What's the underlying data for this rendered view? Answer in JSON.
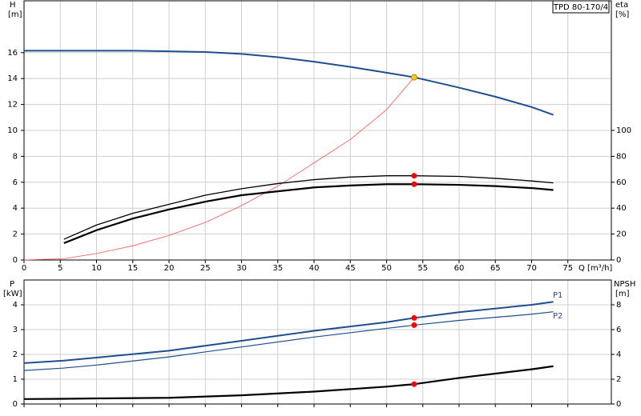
{
  "chart_data": [
    {
      "type": "line",
      "title": "TPD 80-170/4",
      "ylabel": "H",
      "yunit": "[m]",
      "y2label": "eta",
      "y2unit": "[%]",
      "xlabel": "Q [m³/h]",
      "x": [
        0,
        5.5,
        10,
        15,
        20,
        25,
        30,
        35,
        40,
        45,
        50,
        53.8,
        60,
        65,
        70,
        73
      ],
      "xlim": [
        0,
        81
      ],
      "xticks": [
        0,
        5,
        10,
        15,
        20,
        25,
        30,
        35,
        40,
        45,
        50,
        55,
        60,
        65,
        70,
        75
      ],
      "ylim": [
        0,
        20
      ],
      "yticks": [
        0,
        2,
        4,
        6,
        8,
        10,
        12,
        14,
        16
      ],
      "y2lim": [
        0,
        200
      ],
      "y2ticks": [
        0,
        20,
        40,
        60,
        80,
        100
      ],
      "grid": true,
      "series": [
        {
          "color": "#1f4f8f",
          "width": 2,
          "values": [
            16.15,
            16.15,
            16.15,
            16.15,
            16.1,
            16.05,
            15.9,
            15.65,
            15.3,
            14.9,
            14.45,
            14.1,
            13.3,
            12.6,
            11.8,
            11.2
          ]
        },
        {
          "color": "#ff5050",
          "width": 0.8,
          "values": [
            0,
            0.1,
            0.5,
            1.1,
            1.9,
            2.9,
            4.2,
            5.7,
            7.5,
            9.3,
            11.6,
            14.1,
            null,
            null,
            null,
            null
          ]
        },
        {
          "color": "#000000",
          "width": 1.3,
          "axis": "y2",
          "values": [
            null,
            16,
            27,
            36,
            43,
            50,
            55,
            59,
            62,
            64,
            65,
            65,
            64.5,
            63,
            61,
            59.5
          ]
        },
        {
          "color": "#000000",
          "width": 2.2,
          "axis": "y2",
          "values": [
            null,
            13,
            23,
            32,
            39,
            45,
            50,
            53,
            56,
            57.5,
            58.5,
            58.5,
            58,
            57,
            55.5,
            54
          ]
        },
        {
          "color": "#ffcc22",
          "mode": "markers",
          "values": [
            null,
            null,
            null,
            null,
            null,
            null,
            null,
            null,
            null,
            null,
            null,
            14.1,
            null,
            null,
            null,
            null
          ]
        },
        {
          "color": "#ff0000",
          "mode": "markers",
          "axis": "y2",
          "values": [
            null,
            null,
            null,
            null,
            null,
            null,
            null,
            null,
            null,
            null,
            null,
            65,
            null,
            null,
            null,
            null
          ]
        },
        {
          "color": "#ff0000",
          "mode": "markers",
          "axis": "y2",
          "values": [
            null,
            null,
            null,
            null,
            null,
            null,
            null,
            null,
            null,
            null,
            null,
            58.5,
            null,
            null,
            null,
            null
          ]
        }
      ]
    },
    {
      "type": "line",
      "ylabel": "P",
      "yunit": "[kW]",
      "y2label": "NPSH",
      "y2unit": "[m]",
      "x": [
        0,
        5.5,
        10,
        20,
        30,
        40,
        50,
        53.8,
        60,
        70,
        73
      ],
      "xlim": [
        0,
        81
      ],
      "xticks": [
        0,
        5,
        10,
        15,
        20,
        25,
        30,
        35,
        40,
        45,
        50,
        55,
        60,
        65,
        70,
        75
      ],
      "ylim": [
        0,
        5
      ],
      "yticks": [
        0,
        1,
        2,
        3,
        4
      ],
      "y2lim": [
        0,
        10
      ],
      "y2ticks": [
        0,
        2,
        4,
        6,
        8
      ],
      "grid": true,
      "series": [
        {
          "name": "P1",
          "color": "#1f4f8f",
          "width": 2,
          "values": [
            1.65,
            1.75,
            1.87,
            2.15,
            2.55,
            2.95,
            3.3,
            3.47,
            3.7,
            4.0,
            4.12
          ]
        },
        {
          "name": "P2",
          "color": "#1f4f8f",
          "width": 1.2,
          "values": [
            1.35,
            1.45,
            1.57,
            1.9,
            2.3,
            2.7,
            3.05,
            3.18,
            3.37,
            3.62,
            3.72
          ]
        },
        {
          "color": "#000000",
          "width": 2.2,
          "axis": "y2",
          "values": [
            0.4,
            0.42,
            0.45,
            0.5,
            0.7,
            1.0,
            1.4,
            1.6,
            2.1,
            2.8,
            3.05
          ]
        },
        {
          "color": "#ff0000",
          "mode": "markers",
          "values": [
            null,
            null,
            null,
            null,
            null,
            null,
            null,
            3.47,
            null,
            null,
            null
          ]
        },
        {
          "color": "#ff0000",
          "mode": "markers",
          "values": [
            null,
            null,
            null,
            null,
            null,
            null,
            null,
            3.18,
            null,
            null,
            null
          ]
        },
        {
          "color": "#ff0000",
          "mode": "markers",
          "axis": "y2",
          "values": [
            null,
            null,
            null,
            null,
            null,
            null,
            null,
            1.6,
            null,
            null,
            null
          ]
        }
      ]
    }
  ]
}
